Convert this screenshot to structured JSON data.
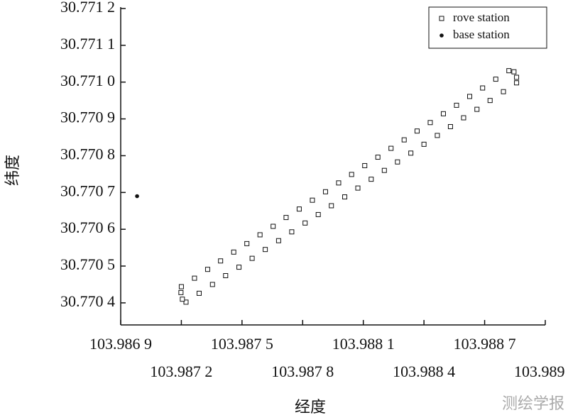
{
  "chart_data": {
    "type": "scatter",
    "xlabel": "经度",
    "ylabel": "纬度",
    "watermark": "测绘学报",
    "xlim": [
      103.9869,
      103.989
    ],
    "ylim": [
      30.77034,
      30.7712
    ],
    "xticks": [
      {
        "value": 103.9869,
        "label": "103.986 9"
      },
      {
        "value": 103.9872,
        "label": "103.987 2"
      },
      {
        "value": 103.9875,
        "label": "103.987 5"
      },
      {
        "value": 103.9878,
        "label": "103.987 8"
      },
      {
        "value": 103.9881,
        "label": "103.988 1"
      },
      {
        "value": 103.9884,
        "label": "103.988 4"
      },
      {
        "value": 103.9887,
        "label": "103.988 7"
      },
      {
        "value": 103.989,
        "label": "103.989 0"
      }
    ],
    "yticks": [
      {
        "value": 30.7704,
        "label": "30.770 4"
      },
      {
        "value": 30.7705,
        "label": "30.770 5"
      },
      {
        "value": 30.7706,
        "label": "30.770 6"
      },
      {
        "value": 30.7707,
        "label": "30.770 7"
      },
      {
        "value": 30.7708,
        "label": "30.770 8"
      },
      {
        "value": 30.7709,
        "label": "30.770 9"
      },
      {
        "value": 30.771,
        "label": "30.771 0"
      },
      {
        "value": 30.7711,
        "label": "30.771 1"
      },
      {
        "value": 30.7712,
        "label": "30.771 2"
      }
    ],
    "legend": "upper right",
    "series": [
      {
        "name": "rove station",
        "marker": "square",
        "color": "#111111",
        "x": [
          103.9872,
          103.987265,
          103.98733,
          103.987394,
          103.987459,
          103.987524,
          103.987589,
          103.987654,
          103.987718,
          103.987783,
          103.987848,
          103.987913,
          103.987978,
          103.988042,
          103.988107,
          103.988172,
          103.988237,
          103.988302,
          103.988366,
          103.988431,
          103.988496,
          103.988561,
          103.988626,
          103.98869,
          103.988755,
          103.98882,
          103.988845,
          103.988858,
          103.988858,
          103.988793,
          103.988727,
          103.988662,
          103.988596,
          103.988531,
          103.988466,
          103.9884,
          103.988335,
          103.988269,
          103.988204,
          103.988139,
          103.988073,
          103.988008,
          103.987942,
          103.987877,
          103.987812,
          103.987746,
          103.987681,
          103.987615,
          103.98755,
          103.987485,
          103.987419,
          103.987354,
          103.987288,
          103.987223,
          103.987205,
          103.987198
        ],
        "values": [
          30.770444,
          30.770467,
          30.770491,
          30.770514,
          30.770538,
          30.770561,
          30.770585,
          30.770608,
          30.770632,
          30.770655,
          30.770679,
          30.770702,
          30.770726,
          30.770749,
          30.770773,
          30.770796,
          30.77082,
          30.770843,
          30.770867,
          30.77089,
          30.770914,
          30.770937,
          30.770961,
          30.770984,
          30.771008,
          30.771031,
          30.771028,
          30.771013,
          30.770998,
          30.770974,
          30.77095,
          30.770926,
          30.770903,
          30.770879,
          30.770855,
          30.770831,
          30.770807,
          30.770783,
          30.77076,
          30.770736,
          30.770712,
          30.770688,
          30.770664,
          30.77064,
          30.770617,
          30.770593,
          30.770569,
          30.770545,
          30.770521,
          30.770497,
          30.770474,
          30.77045,
          30.770426,
          30.770402,
          30.77041,
          30.770428
        ]
      },
      {
        "name": "base station",
        "marker": "dot",
        "color": "#111111",
        "x": [
          103.986981
        ],
        "values": [
          30.77069
        ]
      }
    ]
  }
}
